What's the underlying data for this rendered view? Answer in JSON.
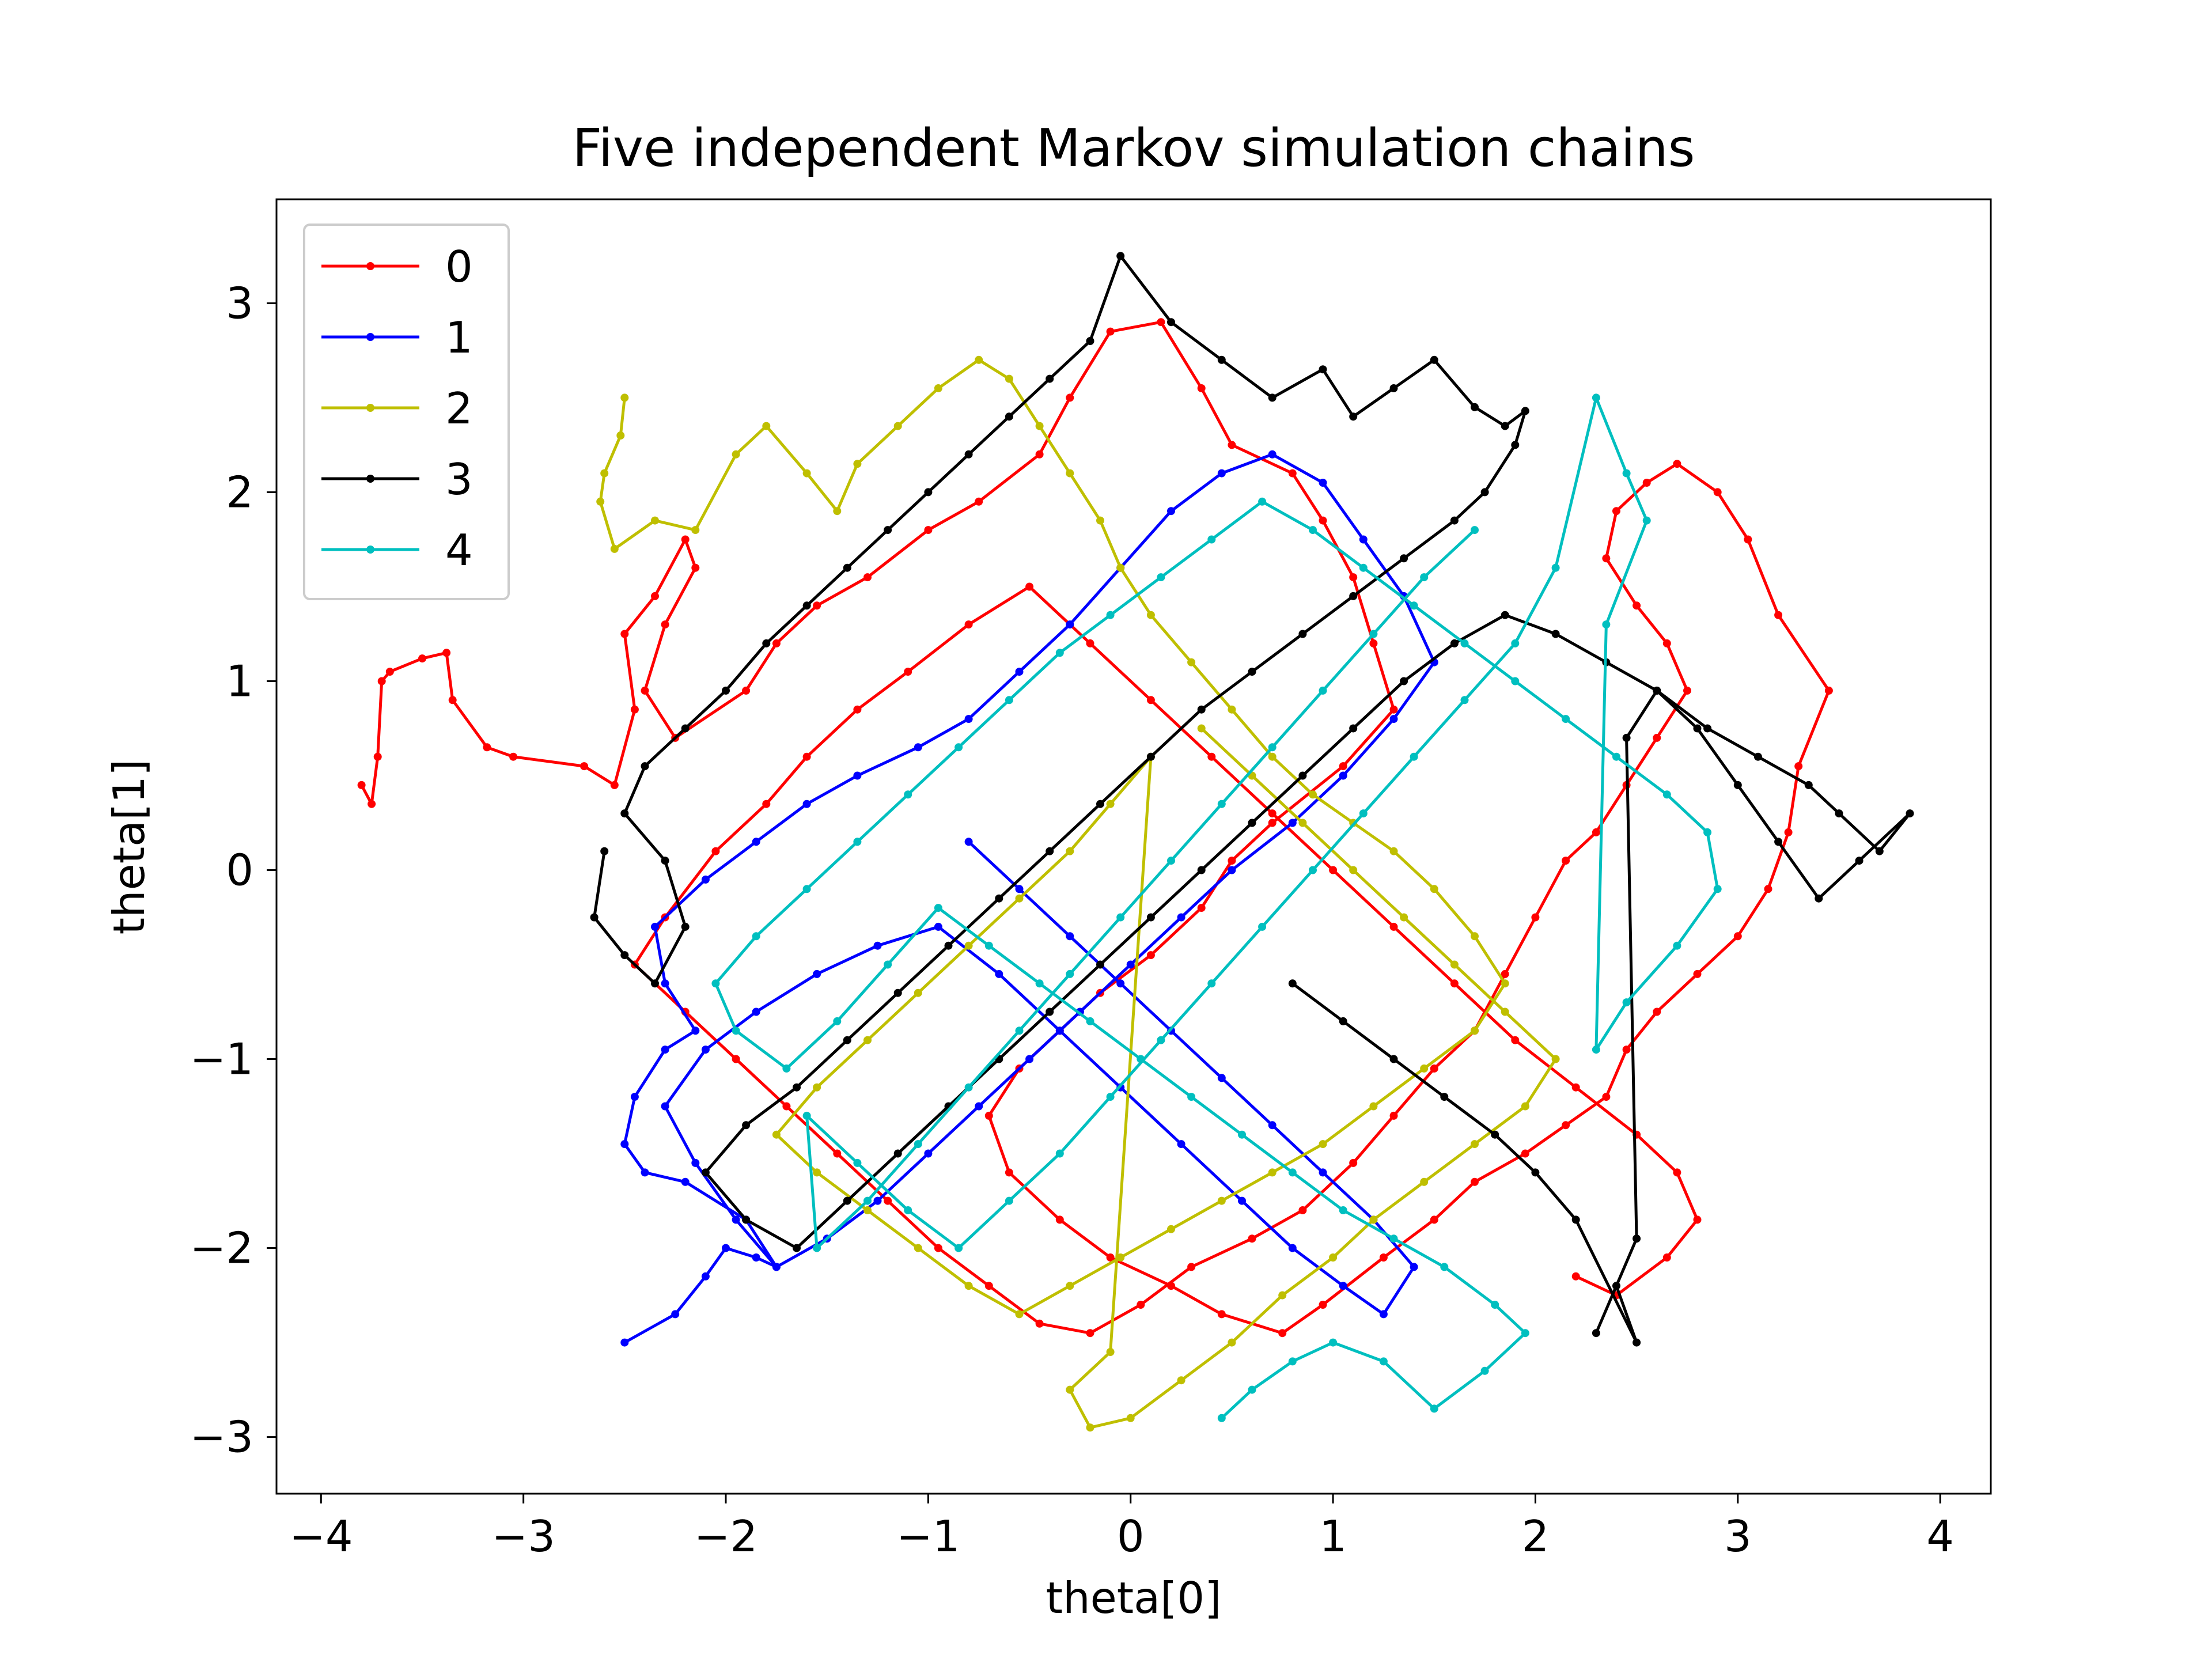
{
  "chart_data": {
    "type": "line",
    "title": "Five independent Markov simulation chains",
    "xlabel": "theta[0]",
    "ylabel": "theta[1]",
    "xlim": [
      -4.22,
      4.25
    ],
    "ylim": [
      -3.3,
      3.55
    ],
    "xticks": [
      -4,
      -3,
      -2,
      -1,
      0,
      1,
      2,
      3,
      4
    ],
    "yticks": [
      -3,
      -2,
      -1,
      0,
      1,
      2,
      3
    ],
    "xtick_labels": [
      "−4",
      "−3",
      "−2",
      "−1",
      "0",
      "1",
      "2",
      "3",
      "4"
    ],
    "ytick_labels": [
      "−3",
      "−2",
      "−1",
      "0",
      "1",
      "2",
      "3"
    ],
    "grid": false,
    "legend_position": "top-left",
    "marker": "small dots",
    "series": [
      {
        "name": "0",
        "color": "#ff0000",
        "x": [
          -3.8,
          -3.75,
          -3.72,
          -3.7,
          -3.66,
          -3.5,
          -3.38,
          -3.35,
          -3.18,
          -3.05,
          -2.7,
          -2.55,
          -2.45,
          -2.5,
          -2.35,
          -2.2,
          -2.15,
          -2.3,
          -2.4,
          -2.25,
          -1.9,
          -1.75,
          -1.55,
          -1.3,
          -1.0,
          -0.75,
          -0.45,
          -0.3,
          -0.1,
          0.15,
          0.35,
          0.5,
          0.8,
          0.95,
          1.1,
          1.2,
          1.3,
          1.05,
          0.7,
          0.5,
          0.35,
          0.1,
          -0.15,
          -0.35,
          -0.55,
          -0.7,
          -0.6,
          -0.35,
          -0.1,
          0.2,
          0.45,
          0.75,
          0.95,
          1.25,
          1.5,
          1.7,
          1.95,
          2.15,
          2.35,
          2.45,
          2.6,
          2.8,
          3.0,
          3.15,
          3.25,
          3.3,
          3.45,
          3.2,
          3.05,
          2.9,
          2.7,
          2.55,
          2.4,
          2.35,
          2.5,
          2.65,
          2.75,
          2.6,
          2.45,
          2.3,
          2.15,
          2.0,
          1.85,
          1.7,
          1.5,
          1.3,
          1.1,
          0.85,
          0.6,
          0.3,
          0.05,
          -0.2,
          -0.45,
          -0.7,
          -0.95,
          -1.2,
          -1.45,
          -1.7,
          -1.95,
          -2.2,
          -2.45,
          -2.3,
          -2.05,
          -1.8,
          -1.6,
          -1.35,
          -1.1,
          -0.8,
          -0.5,
          -0.2,
          0.1,
          0.4,
          0.7,
          1.0,
          1.3,
          1.6,
          1.9,
          2.2,
          2.5,
          2.7,
          2.8,
          2.65,
          2.4,
          2.2
        ],
        "y": [
          0.45,
          0.35,
          0.6,
          1.0,
          1.05,
          1.12,
          1.15,
          0.9,
          0.65,
          0.6,
          0.55,
          0.45,
          0.85,
          1.25,
          1.45,
          1.75,
          1.6,
          1.3,
          0.95,
          0.7,
          0.95,
          1.2,
          1.4,
          1.55,
          1.8,
          1.95,
          2.2,
          2.5,
          2.85,
          2.9,
          2.55,
          2.25,
          2.1,
          1.85,
          1.55,
          1.2,
          0.85,
          0.55,
          0.25,
          0.05,
          -0.2,
          -0.45,
          -0.65,
          -0.85,
          -1.05,
          -1.3,
          -1.6,
          -1.85,
          -2.05,
          -2.2,
          -2.35,
          -2.45,
          -2.3,
          -2.05,
          -1.85,
          -1.65,
          -1.5,
          -1.35,
          -1.2,
          -0.95,
          -0.75,
          -0.55,
          -0.35,
          -0.1,
          0.2,
          0.55,
          0.95,
          1.35,
          1.75,
          2.0,
          2.15,
          2.05,
          1.9,
          1.65,
          1.4,
          1.2,
          0.95,
          0.7,
          0.45,
          0.2,
          0.05,
          -0.25,
          -0.55,
          -0.85,
          -1.05,
          -1.3,
          -1.55,
          -1.8,
          -1.95,
          -2.1,
          -2.3,
          -2.45,
          -2.4,
          -2.2,
          -2.0,
          -1.75,
          -1.5,
          -1.25,
          -1.0,
          -0.75,
          -0.5,
          -0.25,
          0.1,
          0.35,
          0.6,
          0.85,
          1.05,
          1.3,
          1.5,
          1.2,
          0.9,
          0.6,
          0.3,
          0.0,
          -0.3,
          -0.6,
          -0.9,
          -1.15,
          -1.4,
          -1.6,
          -1.85,
          -2.05,
          -2.25,
          -2.15
        ]
      },
      {
        "name": "1",
        "color": "#0000ff",
        "x": [
          -2.5,
          -2.25,
          -2.1,
          -2.0,
          -1.85,
          -1.75,
          -1.9,
          -2.2,
          -2.4,
          -2.5,
          -2.45,
          -2.3,
          -2.15,
          -2.3,
          -2.35,
          -2.1,
          -1.85,
          -1.6,
          -1.35,
          -1.05,
          -0.8,
          -0.55,
          -0.3,
          -0.05,
          0.2,
          0.45,
          0.7,
          0.95,
          1.15,
          1.35,
          1.5,
          1.3,
          1.05,
          0.8,
          0.5,
          0.25,
          0.0,
          -0.25,
          -0.5,
          -0.75,
          -1.0,
          -1.25,
          -1.5,
          -1.75,
          -1.95,
          -2.15,
          -2.3,
          -2.1,
          -1.85,
          -1.55,
          -1.25,
          -0.95,
          -0.65,
          -0.35,
          -0.05,
          0.25,
          0.55,
          0.8,
          1.05,
          1.25,
          1.4,
          1.2,
          0.95,
          0.7,
          0.45,
          0.2,
          -0.05,
          -0.3,
          -0.55,
          -0.8
        ],
        "y": [
          -2.5,
          -2.35,
          -2.15,
          -2.0,
          -2.05,
          -2.1,
          -1.85,
          -1.65,
          -1.6,
          -1.45,
          -1.2,
          -0.95,
          -0.85,
          -0.6,
          -0.3,
          -0.05,
          0.15,
          0.35,
          0.5,
          0.65,
          0.8,
          1.05,
          1.3,
          1.6,
          1.9,
          2.1,
          2.2,
          2.05,
          1.75,
          1.45,
          1.1,
          0.8,
          0.5,
          0.25,
          0.0,
          -0.25,
          -0.5,
          -0.75,
          -1.0,
          -1.25,
          -1.5,
          -1.75,
          -1.95,
          -2.1,
          -1.85,
          -1.55,
          -1.25,
          -0.95,
          -0.75,
          -0.55,
          -0.4,
          -0.3,
          -0.55,
          -0.85,
          -1.15,
          -1.45,
          -1.75,
          -2.0,
          -2.2,
          -2.35,
          -2.1,
          -1.85,
          -1.6,
          -1.35,
          -1.1,
          -0.85,
          -0.6,
          -0.35,
          -0.1,
          0.15
        ]
      },
      {
        "name": "2",
        "color": "#bfbf00",
        "x": [
          -2.5,
          -2.52,
          -2.6,
          -2.62,
          -2.55,
          -2.35,
          -2.15,
          -1.95,
          -1.8,
          -1.6,
          -1.45,
          -1.35,
          -1.15,
          -0.95,
          -0.75,
          -0.6,
          -0.45,
          -0.3,
          -0.15,
          -0.05,
          0.1,
          0.3,
          0.5,
          0.7,
          0.9,
          1.1,
          1.3,
          1.5,
          1.7,
          1.85,
          1.7,
          1.45,
          1.2,
          0.95,
          0.7,
          0.45,
          0.2,
          -0.05,
          -0.3,
          -0.55,
          -0.8,
          -1.05,
          -1.3,
          -1.55,
          -1.75,
          -1.55,
          -1.3,
          -1.05,
          -0.8,
          -0.55,
          -0.3,
          -0.1,
          0.1,
          -0.1,
          -0.3,
          -0.2,
          0.0,
          0.25,
          0.5,
          0.75,
          1.0,
          1.2,
          1.45,
          1.7,
          1.95,
          2.1,
          1.85,
          1.6,
          1.35,
          1.1,
          0.85,
          0.6,
          0.35
        ],
        "y": [
          2.5,
          2.3,
          2.1,
          1.95,
          1.7,
          1.85,
          1.8,
          2.2,
          2.35,
          2.1,
          1.9,
          2.15,
          2.35,
          2.55,
          2.7,
          2.6,
          2.35,
          2.1,
          1.85,
          1.6,
          1.35,
          1.1,
          0.85,
          0.6,
          0.4,
          0.25,
          0.1,
          -0.1,
          -0.35,
          -0.6,
          -0.85,
          -1.05,
          -1.25,
          -1.45,
          -1.6,
          -1.75,
          -1.9,
          -2.05,
          -2.2,
          -2.35,
          -2.2,
          -2.0,
          -1.8,
          -1.6,
          -1.4,
          -1.15,
          -0.9,
          -0.65,
          -0.4,
          -0.15,
          0.1,
          0.35,
          0.6,
          -2.55,
          -2.75,
          -2.95,
          -2.9,
          -2.7,
          -2.5,
          -2.25,
          -2.05,
          -1.85,
          -1.65,
          -1.45,
          -1.25,
          -1.0,
          -0.75,
          -0.5,
          -0.25,
          0.0,
          0.25,
          0.5,
          0.75
        ]
      },
      {
        "name": "3",
        "color": "#000000",
        "x": [
          -2.6,
          -2.65,
          -2.5,
          -2.35,
          -2.2,
          -2.3,
          -2.5,
          -2.4,
          -2.2,
          -2.0,
          -1.8,
          -1.6,
          -1.4,
          -1.2,
          -1.0,
          -0.8,
          -0.6,
          -0.4,
          -0.2,
          -0.05,
          0.2,
          0.45,
          0.7,
          0.95,
          1.1,
          1.3,
          1.5,
          1.7,
          1.85,
          1.95,
          1.9,
          1.75,
          1.6,
          1.35,
          1.1,
          0.85,
          0.6,
          0.35,
          0.1,
          -0.15,
          -0.4,
          -0.65,
          -0.9,
          -1.15,
          -1.4,
          -1.65,
          -1.9,
          -2.1,
          -1.9,
          -1.65,
          -1.4,
          -1.15,
          -0.9,
          -0.65,
          -0.4,
          -0.15,
          0.1,
          0.35,
          0.6,
          0.85,
          1.1,
          1.35,
          1.6,
          1.85,
          2.1,
          2.35,
          2.6,
          2.85,
          3.1,
          3.35,
          3.5,
          3.7,
          3.85,
          3.6,
          3.4,
          3.2,
          3.0,
          2.8,
          2.6,
          2.45,
          2.5,
          2.3,
          2.4,
          2.5,
          2.2,
          2.0,
          1.8,
          1.55,
          1.3,
          1.05,
          0.8
        ],
        "y": [
          0.1,
          -0.25,
          -0.45,
          -0.6,
          -0.3,
          0.05,
          0.3,
          0.55,
          0.75,
          0.95,
          1.2,
          1.4,
          1.6,
          1.8,
          2.0,
          2.2,
          2.4,
          2.6,
          2.8,
          3.25,
          2.9,
          2.7,
          2.5,
          2.65,
          2.4,
          2.55,
          2.7,
          2.45,
          2.35,
          2.43,
          2.25,
          2.0,
          1.85,
          1.65,
          1.45,
          1.25,
          1.05,
          0.85,
          0.6,
          0.35,
          0.1,
          -0.15,
          -0.4,
          -0.65,
          -0.9,
          -1.15,
          -1.35,
          -1.6,
          -1.85,
          -2.0,
          -1.75,
          -1.5,
          -1.25,
          -1.0,
          -0.75,
          -0.5,
          -0.25,
          0.0,
          0.25,
          0.5,
          0.75,
          1.0,
          1.2,
          1.35,
          1.25,
          1.1,
          0.95,
          0.75,
          0.6,
          0.45,
          0.3,
          0.1,
          0.3,
          0.05,
          -0.15,
          0.15,
          0.45,
          0.75,
          0.95,
          0.7,
          -1.95,
          -2.45,
          -2.2,
          -2.5,
          -1.85,
          -1.6,
          -1.4,
          -1.2,
          -1.0,
          -0.8,
          -0.6
        ]
      },
      {
        "name": "4",
        "color": "#00bfbf",
        "x": [
          0.45,
          0.6,
          0.8,
          1.0,
          1.25,
          1.5,
          1.75,
          1.95,
          1.8,
          1.55,
          1.3,
          1.05,
          0.8,
          0.55,
          0.3,
          0.05,
          -0.2,
          -0.45,
          -0.7,
          -0.95,
          -1.2,
          -1.45,
          -1.7,
          -1.95,
          -2.05,
          -1.85,
          -1.6,
          -1.35,
          -1.1,
          -0.85,
          -0.6,
          -0.35,
          -0.1,
          0.15,
          0.4,
          0.65,
          0.9,
          1.15,
          1.4,
          1.65,
          1.9,
          2.15,
          2.4,
          2.65,
          2.85,
          2.9,
          2.7,
          2.45,
          2.3,
          2.35,
          2.55,
          2.45,
          2.3,
          2.1,
          1.9,
          1.65,
          1.4,
          1.15,
          0.9,
          0.65,
          0.4,
          0.15,
          -0.1,
          -0.35,
          -0.6,
          -0.85,
          -1.1,
          -1.35,
          -1.6,
          -1.55,
          -1.3,
          -1.05,
          -0.8,
          -0.55,
          -0.3,
          -0.05,
          0.2,
          0.45,
          0.7,
          0.95,
          1.2,
          1.45,
          1.7
        ],
        "y": [
          -2.9,
          -2.75,
          -2.6,
          -2.5,
          -2.6,
          -2.85,
          -2.65,
          -2.45,
          -2.3,
          -2.1,
          -1.95,
          -1.8,
          -1.6,
          -1.4,
          -1.2,
          -1.0,
          -0.8,
          -0.6,
          -0.4,
          -0.2,
          -0.5,
          -0.8,
          -1.05,
          -0.85,
          -0.6,
          -0.35,
          -0.1,
          0.15,
          0.4,
          0.65,
          0.9,
          1.15,
          1.35,
          1.55,
          1.75,
          1.95,
          1.8,
          1.6,
          1.4,
          1.2,
          1.0,
          0.8,
          0.6,
          0.4,
          0.2,
          -0.1,
          -0.4,
          -0.7,
          -0.95,
          1.3,
          1.85,
          2.1,
          2.5,
          1.6,
          1.2,
          0.9,
          0.6,
          0.3,
          0.0,
          -0.3,
          -0.6,
          -0.9,
          -1.2,
          -1.5,
          -1.75,
          -2.0,
          -1.8,
          -1.55,
          -1.3,
          -2.0,
          -1.75,
          -1.45,
          -1.15,
          -0.85,
          -0.55,
          -0.25,
          0.05,
          0.35,
          0.65,
          0.95,
          1.25,
          1.55,
          1.8
        ]
      }
    ]
  }
}
